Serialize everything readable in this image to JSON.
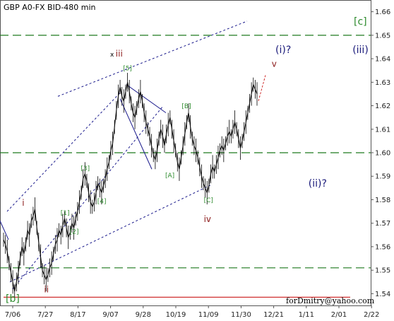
{
  "chart_data": {
    "type": "line",
    "title": "GBP A0-FX BID-480 min",
    "credit": "forDmitry@yahoo.com",
    "ylim": [
      1.535,
      1.665
    ],
    "yticks": [
      "1.54",
      "1.55",
      "1.56",
      "1.57",
      "1.58",
      "1.59",
      "1.60",
      "1.61",
      "1.62",
      "1.63",
      "1.64",
      "1.65",
      "1.66"
    ],
    "xticks": [
      "7/06",
      "7/27",
      "8/17",
      "9/07",
      "9/28",
      "10/19",
      "11/09",
      "11/30",
      "12/21",
      "1/11",
      "2/01",
      "2/22"
    ],
    "series": [
      {
        "values": [
          1.563,
          1.561,
          1.558,
          1.553,
          1.549,
          1.545,
          1.541,
          1.545,
          1.549,
          1.555,
          1.56,
          1.557,
          1.561,
          1.567,
          1.565,
          1.571,
          1.573,
          1.576,
          1.568,
          1.562,
          1.556,
          1.55,
          1.548,
          1.546,
          1.548,
          1.551,
          1.553,
          1.557,
          1.561,
          1.563,
          1.567,
          1.565,
          1.569,
          1.572,
          1.568,
          1.564,
          1.566,
          1.57,
          1.568,
          1.572,
          1.575,
          1.579,
          1.583,
          1.589,
          1.591,
          1.588,
          1.583,
          1.579,
          1.577,
          1.579,
          1.583,
          1.587,
          1.585,
          1.583,
          1.586,
          1.589,
          1.593,
          1.596,
          1.601,
          1.604,
          1.611,
          1.618,
          1.624,
          1.628,
          1.624,
          1.622,
          1.626,
          1.63,
          1.626,
          1.621,
          1.617,
          1.615,
          1.619,
          1.623,
          1.626,
          1.622,
          1.617,
          1.613,
          1.61,
          1.607,
          1.603,
          1.599,
          1.597,
          1.601,
          1.606,
          1.61,
          1.607,
          1.603,
          1.608,
          1.612,
          1.615,
          1.61,
          1.605,
          1.601,
          1.596,
          1.593,
          1.598,
          1.603,
          1.608,
          1.613,
          1.617,
          1.611,
          1.606,
          1.603,
          1.601,
          1.598,
          1.594,
          1.59,
          1.587,
          1.585,
          1.583,
          1.586,
          1.591,
          1.594,
          1.592,
          1.595,
          1.598,
          1.601,
          1.603,
          1.601,
          1.604,
          1.607,
          1.609,
          1.607,
          1.61,
          1.613,
          1.61,
          1.606,
          1.602,
          1.605,
          1.609,
          1.613,
          1.617,
          1.621,
          1.625,
          1.629,
          1.627,
          1.625
        ]
      }
    ],
    "annotations": {
      "channel_label": "[c]",
      "low_label": "[b]",
      "labels": [
        {
          "text": "x",
          "kind": "sm",
          "color": "#000000",
          "x": 60,
          "y": 1.641
        },
        {
          "text": "iii",
          "kind": "md",
          "color": "#8b1a1a",
          "x": 63,
          "y": 1.641
        },
        {
          "text": "[5]",
          "kind": "sm",
          "color": "#2e8b2e",
          "x": 67,
          "y": 1.635
        },
        {
          "text": "i",
          "kind": "md",
          "color": "#8b1a1a",
          "x": 12,
          "y": 1.5775
        },
        {
          "text": "ii",
          "kind": "md",
          "color": "#8b1a1a",
          "x": 24,
          "y": 1.5405
        },
        {
          "text": "[1]",
          "kind": "sm",
          "color": "#2e8b2e",
          "x": 33,
          "y": 1.5735
        },
        {
          "text": "[2]",
          "kind": "sm",
          "color": "#2e8b2e",
          "x": 38,
          "y": 1.5655
        },
        {
          "text": "[3]",
          "kind": "sm",
          "color": "#2e8b2e",
          "x": 44,
          "y": 1.5925
        },
        {
          "text": "[4]",
          "kind": "sm",
          "color": "#2e8b2e",
          "x": 53,
          "y": 1.5785
        },
        {
          "text": "[B]",
          "kind": "sm",
          "color": "#2e8b2e",
          "x": 99,
          "y": 1.619
        },
        {
          "text": "[A]",
          "kind": "sm",
          "color": "#2e8b2e",
          "x": 90,
          "y": 1.5895
        },
        {
          "text": "[C]",
          "kind": "sm",
          "color": "#2e8b2e",
          "x": 111,
          "y": 1.579
        },
        {
          "text": "iv",
          "kind": "md",
          "color": "#8b1a1a",
          "x": 111,
          "y": 1.5705
        },
        {
          "text": "(i)?",
          "kind": "lg",
          "color": "#1a1a7a",
          "x": 150,
          "y": 1.6425
        },
        {
          "text": "v",
          "kind": "md",
          "color": "#8b1a1a",
          "x": 148,
          "y": 1.6365
        },
        {
          "text": "(iii)",
          "kind": "lg",
          "color": "#1a1a7a",
          "x": 192,
          "y": 1.6425
        },
        {
          "text": "(ii)?",
          "kind": "lg",
          "color": "#1a1a7a",
          "x": 168,
          "y": 1.5855
        }
      ]
    }
  }
}
